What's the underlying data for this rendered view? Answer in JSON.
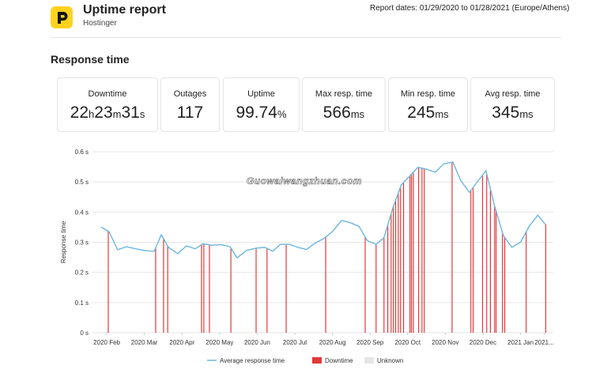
{
  "header": {
    "title": "Uptime report",
    "subtitle": "Hostinger",
    "report_dates": "Report dates: 01/29/2020 to 01/28/2021 (Europe/Athens)"
  },
  "section_title": "Response time",
  "stats": [
    {
      "label": "Downtime",
      "parts": [
        {
          "value": 22,
          "unit": "h"
        },
        {
          "value": 23,
          "unit": "m"
        },
        {
          "value": 31,
          "unit": "s"
        }
      ]
    },
    {
      "label": "Outages",
      "parts": [
        {
          "value": 117
        }
      ]
    },
    {
      "label": "Uptime",
      "parts": [
        {
          "value": 99.74,
          "unit": "%"
        }
      ]
    },
    {
      "label": "Max resp. time",
      "parts": [
        {
          "value": 566,
          "unit": "ms"
        }
      ]
    },
    {
      "label": "Min resp. time",
      "parts": [
        {
          "value": 245,
          "unit": "ms"
        }
      ]
    },
    {
      "label": "Avg resp. time",
      "parts": [
        {
          "value": 345,
          "unit": "ms"
        }
      ]
    }
  ],
  "chart_data": {
    "type": "line",
    "y_label": "Response time",
    "watermark": "Guowaiwangzhuan.com",
    "grid": true,
    "xlim": [
      0.62,
      12.87
    ],
    "xticks": [
      {
        "value": 1,
        "label": "2020 Feb"
      },
      {
        "value": 2,
        "label": "2020 Mar"
      },
      {
        "value": 3,
        "label": "2020 Apr"
      },
      {
        "value": 4,
        "label": "2020 May"
      },
      {
        "value": 5,
        "label": "2020 Jun"
      },
      {
        "value": 6,
        "label": "2020 Jul"
      },
      {
        "value": 7,
        "label": "2020 Aug"
      },
      {
        "value": 8,
        "label": "2020 Sep"
      },
      {
        "value": 9,
        "label": "2020 Oct"
      },
      {
        "value": 10,
        "label": "2020 Nov"
      },
      {
        "value": 11,
        "label": "2020 Dec"
      },
      {
        "value": 12,
        "label": "2021 Jan"
      },
      {
        "value": 12.63,
        "label": "2021..."
      }
    ],
    "ylim": [
      0,
      0.6
    ],
    "yticks": [
      {
        "value": 0,
        "label": "0 s"
      },
      {
        "value": 0.1,
        "label": "0.1 s"
      },
      {
        "value": 0.2,
        "label": "0.2 s"
      },
      {
        "value": 0.3,
        "label": "0.3 s"
      },
      {
        "value": 0.4,
        "label": "0.4 s"
      },
      {
        "value": 0.5,
        "label": "0.5 s"
      },
      {
        "value": 0.6,
        "label": "0.6 s"
      }
    ],
    "series": [
      {
        "name": "Average response time",
        "color": "#6bb7e0",
        "x": [
          0.85,
          1.06,
          1.29,
          1.52,
          1.78,
          2.03,
          2.26,
          2.45,
          2.64,
          2.89,
          3.12,
          3.35,
          3.56,
          3.79,
          4.04,
          4.28,
          4.46,
          4.72,
          4.97,
          5.2,
          5.41,
          5.62,
          5.85,
          6.08,
          6.31,
          6.54,
          6.77,
          7.0,
          7.24,
          7.47,
          7.7,
          7.93,
          8.16,
          8.37,
          8.6,
          8.83,
          9.06,
          9.27,
          9.5,
          9.73,
          9.96,
          10.2,
          10.41,
          10.64,
          10.87,
          11.08,
          11.31,
          11.54,
          11.77,
          12.0,
          12.23,
          12.46,
          12.65
        ],
        "values": [
          0.35,
          0.335,
          0.275,
          0.285,
          0.278,
          0.272,
          0.27,
          0.325,
          0.283,
          0.262,
          0.288,
          0.278,
          0.295,
          0.29,
          0.292,
          0.285,
          0.248,
          0.273,
          0.28,
          0.283,
          0.27,
          0.293,
          0.293,
          0.283,
          0.276,
          0.297,
          0.312,
          0.335,
          0.372,
          0.365,
          0.353,
          0.305,
          0.293,
          0.315,
          0.412,
          0.49,
          0.52,
          0.548,
          0.542,
          0.532,
          0.56,
          0.566,
          0.505,
          0.465,
          0.503,
          0.537,
          0.42,
          0.323,
          0.283,
          0.3,
          0.353,
          0.39,
          0.36
        ]
      }
    ],
    "downtime": {
      "name": "Downtime",
      "color": "#e03a3a",
      "x": [
        1.04,
        2.3,
        2.51,
        2.62,
        3.52,
        3.58,
        3.73,
        4.3,
        4.97,
        5.26,
        5.77,
        6.82,
        7.87,
        8.16,
        8.37,
        8.47,
        8.56,
        8.62,
        8.68,
        8.75,
        8.81,
        8.89,
        9.06,
        9.1,
        9.15,
        9.29,
        9.38,
        9.44,
        10.18,
        10.68,
        10.74,
        10.99,
        11.1,
        11.2,
        11.31,
        11.35,
        11.52,
        11.58,
        12.15,
        12.67
      ]
    },
    "unknown": {
      "name": "Unknown",
      "color": "#e6e6e6"
    }
  }
}
